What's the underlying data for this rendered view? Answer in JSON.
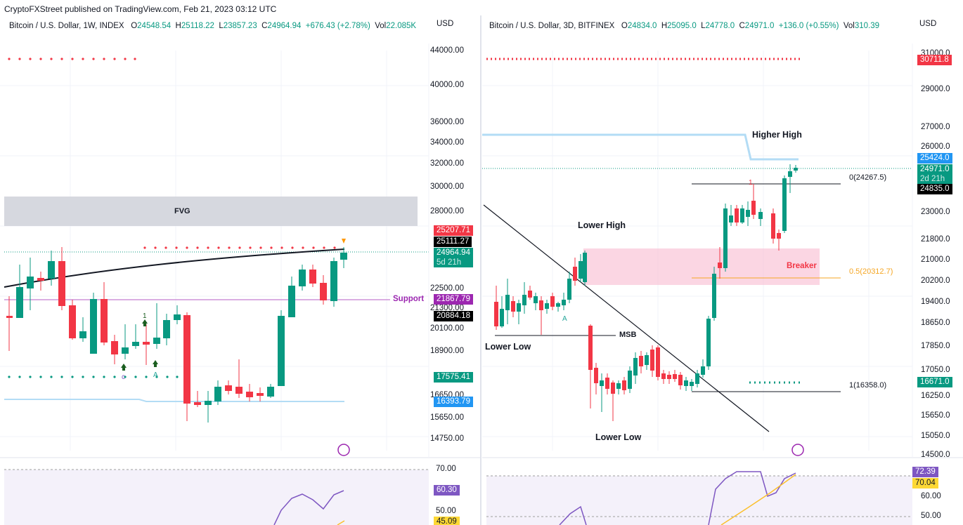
{
  "header": {
    "publisher": "CryptoFXStreet published on TradingView.com, Feb 21, 2023 03:12 UTC"
  },
  "left": {
    "symbol": "Bitcoin / U.S. Dollar, 1W, INDEX",
    "o_label": "O",
    "o": "24548.54",
    "h_label": "H",
    "h": "25118.22",
    "l_label": "L",
    "l": "23857.23",
    "c_label": "C",
    "c": "24964.94",
    "chg": "+676.43 (+2.78%)",
    "vol_label": "Vol",
    "vol": "22.085K",
    "currency": "USD",
    "ticks": [
      "44000.00",
      "40000.00",
      "36000.00",
      "34000.00",
      "32000.00",
      "30000.00",
      "28000.00",
      "22500.00",
      "21300.00",
      "20100.00",
      "18900.00",
      "16650.00",
      "15650.00",
      "14750.00"
    ],
    "rsi_ticks": [
      "70.00",
      "50.00"
    ],
    "fvg": "FVG",
    "support": "Support",
    "signal_1": "1",
    "signal_c": "c",
    "signal_a": "A",
    "tags": {
      "t1": "25207.71",
      "t2": "25111.27",
      "t3": "24964.94",
      "t3b": "5d 21h",
      "t4": "21867.79",
      "t5": "20884.18",
      "t6": "17575.41",
      "t7": "16393.79",
      "rsi1": "60.30",
      "rsi2": "45.09"
    },
    "colors": {
      "up": "#089981",
      "down": "#f23645",
      "support": "#9c27b0"
    }
  },
  "right": {
    "symbol": "Bitcoin / U.S. Dollar, 3D, BITFINEX",
    "o_label": "O",
    "o": "24834.0",
    "h_label": "H",
    "h": "25095.0",
    "l_label": "L",
    "l": "24778.0",
    "c_label": "C",
    "c": "24971.0",
    "chg": "+136.0 (+0.55%)",
    "vol_label": "Vol",
    "vol": "310.39",
    "currency": "USD",
    "ticks": [
      "31000.0",
      "29000.0",
      "27000.0",
      "26000.0",
      "23000.0",
      "21800.0",
      "21000.0",
      "20200.0",
      "19400.0",
      "18650.0",
      "17850.0",
      "17050.0",
      "16250.0",
      "15650.0",
      "15050.0",
      "14500.0"
    ],
    "rsi_ticks": [
      "60.00",
      "50.00"
    ],
    "labels": {
      "higher_high": "Higher High",
      "lower_high": "Lower High",
      "lower_low_1": "Lower Low",
      "lower_low_2": "Lower Low",
      "msb": "MSB",
      "breaker": "Breaker",
      "fib0": "0(24267.5)",
      "fib05": "0.5(20312.7)",
      "fib1": "1(16358.0)",
      "marker_a": "A",
      "marker_1": "1"
    },
    "tags": {
      "t1": "30711.8",
      "t2": "25424.0",
      "t3": "24971.0",
      "t3b": "2d 21h",
      "t4": "24835.0",
      "t5": "16671.0",
      "rsi1": "72.39",
      "rsi2": "70.04"
    }
  }
}
